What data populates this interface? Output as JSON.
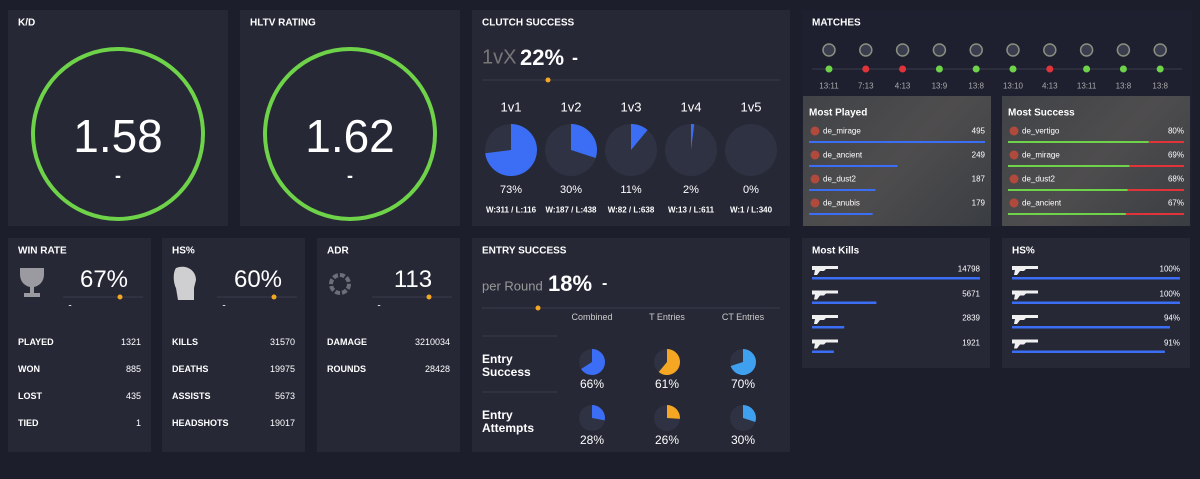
{
  "kd": {
    "title": "K/D",
    "value": "1.58",
    "change": "-"
  },
  "rating": {
    "title": "HLTV RATING",
    "value": "1.62",
    "change": "-"
  },
  "clutch": {
    "title": "CLUTCH SUCCESS",
    "prefix": "1vX",
    "value": "22%",
    "change": "-",
    "color": "#3b6ef5",
    "labels": [
      "1v1",
      "1v2",
      "1v3",
      "1v4",
      "1v5"
    ],
    "values": [
      73,
      30,
      11,
      2,
      0
    ],
    "value_labels": [
      "73%",
      "30%",
      "11%",
      "2%",
      "0%"
    ],
    "records": [
      "W:311 / L:116",
      "W:187 / L:438",
      "W:82 / L:638",
      "W:13 / L:611",
      "W:1 / L:340"
    ]
  },
  "matches": {
    "title": "MATCHES",
    "times": [
      "13:11",
      "7:13",
      "4:13",
      "13:9",
      "13:8",
      "13:10",
      "4:13",
      "13:11",
      "13:8",
      "13:8"
    ],
    "colors": [
      "#6fd34a",
      "#e0343a",
      "#e0343a",
      "#6fd34a",
      "#6fd34a",
      "#6fd34a",
      "#e0343a",
      "#6fd34a",
      "#6fd34a",
      "#6fd34a"
    ]
  },
  "most_played": {
    "title": "Most Played",
    "maps": [
      "de_mirage",
      "de_ancient",
      "de_dust2",
      "de_anubis"
    ],
    "values": [
      495,
      249,
      187,
      179
    ],
    "color": "#3b6ef5"
  },
  "most_success": {
    "title": "Most Success",
    "maps": [
      "de_vertigo",
      "de_mirage",
      "de_dust2",
      "de_ancient"
    ],
    "values": [
      80,
      69,
      68,
      67
    ],
    "value_labels": [
      "80%",
      "69%",
      "68%",
      "67%"
    ],
    "color": "#6fd34a",
    "rest_color": "#e0343a"
  },
  "win_rate": {
    "title": "WIN RATE",
    "value": "67%",
    "change": "-",
    "rows": [
      [
        "PLAYED",
        1321
      ],
      [
        "WON",
        885
      ],
      [
        "LOST",
        435
      ],
      [
        "TIED",
        1
      ]
    ]
  },
  "hs": {
    "title": "HS%",
    "value": "60%",
    "change": "-",
    "rows": [
      [
        "KILLS",
        31570
      ],
      [
        "DEATHS",
        19975
      ],
      [
        "ASSISTS",
        5673
      ],
      [
        "HEADSHOTS",
        19017
      ]
    ]
  },
  "adr": {
    "title": "ADR",
    "value": "113",
    "change": "-",
    "rows": [
      [
        "DAMAGE",
        3210034
      ],
      [
        "ROUNDS",
        28428
      ]
    ]
  },
  "entry": {
    "title": "ENTRY SUCCESS",
    "prefix": "per Round",
    "value": "18%",
    "change": "-",
    "columns": [
      "Combined",
      "T Entries",
      "CT Entries"
    ],
    "colors": [
      "#3b6ef5",
      "#f5a623",
      "#3fa0f0"
    ],
    "rows": [
      {
        "label": "Entry Success",
        "values": [
          66,
          61,
          70
        ],
        "value_labels": [
          "66%",
          "61%",
          "70%"
        ]
      },
      {
        "label": "Entry Attempts",
        "values": [
          28,
          26,
          30
        ],
        "value_labels": [
          "28%",
          "26%",
          "30%"
        ]
      }
    ]
  },
  "most_kills": {
    "title": "Most Kills",
    "values": [
      14798,
      5671,
      2839,
      1921
    ],
    "color": "#3b6ef5"
  },
  "weapon_hs": {
    "title": "HS%",
    "values": [
      100,
      100,
      94,
      91
    ],
    "value_labels": [
      "100%",
      "100%",
      "94%",
      "91%"
    ],
    "color": "#3b6ef5"
  }
}
